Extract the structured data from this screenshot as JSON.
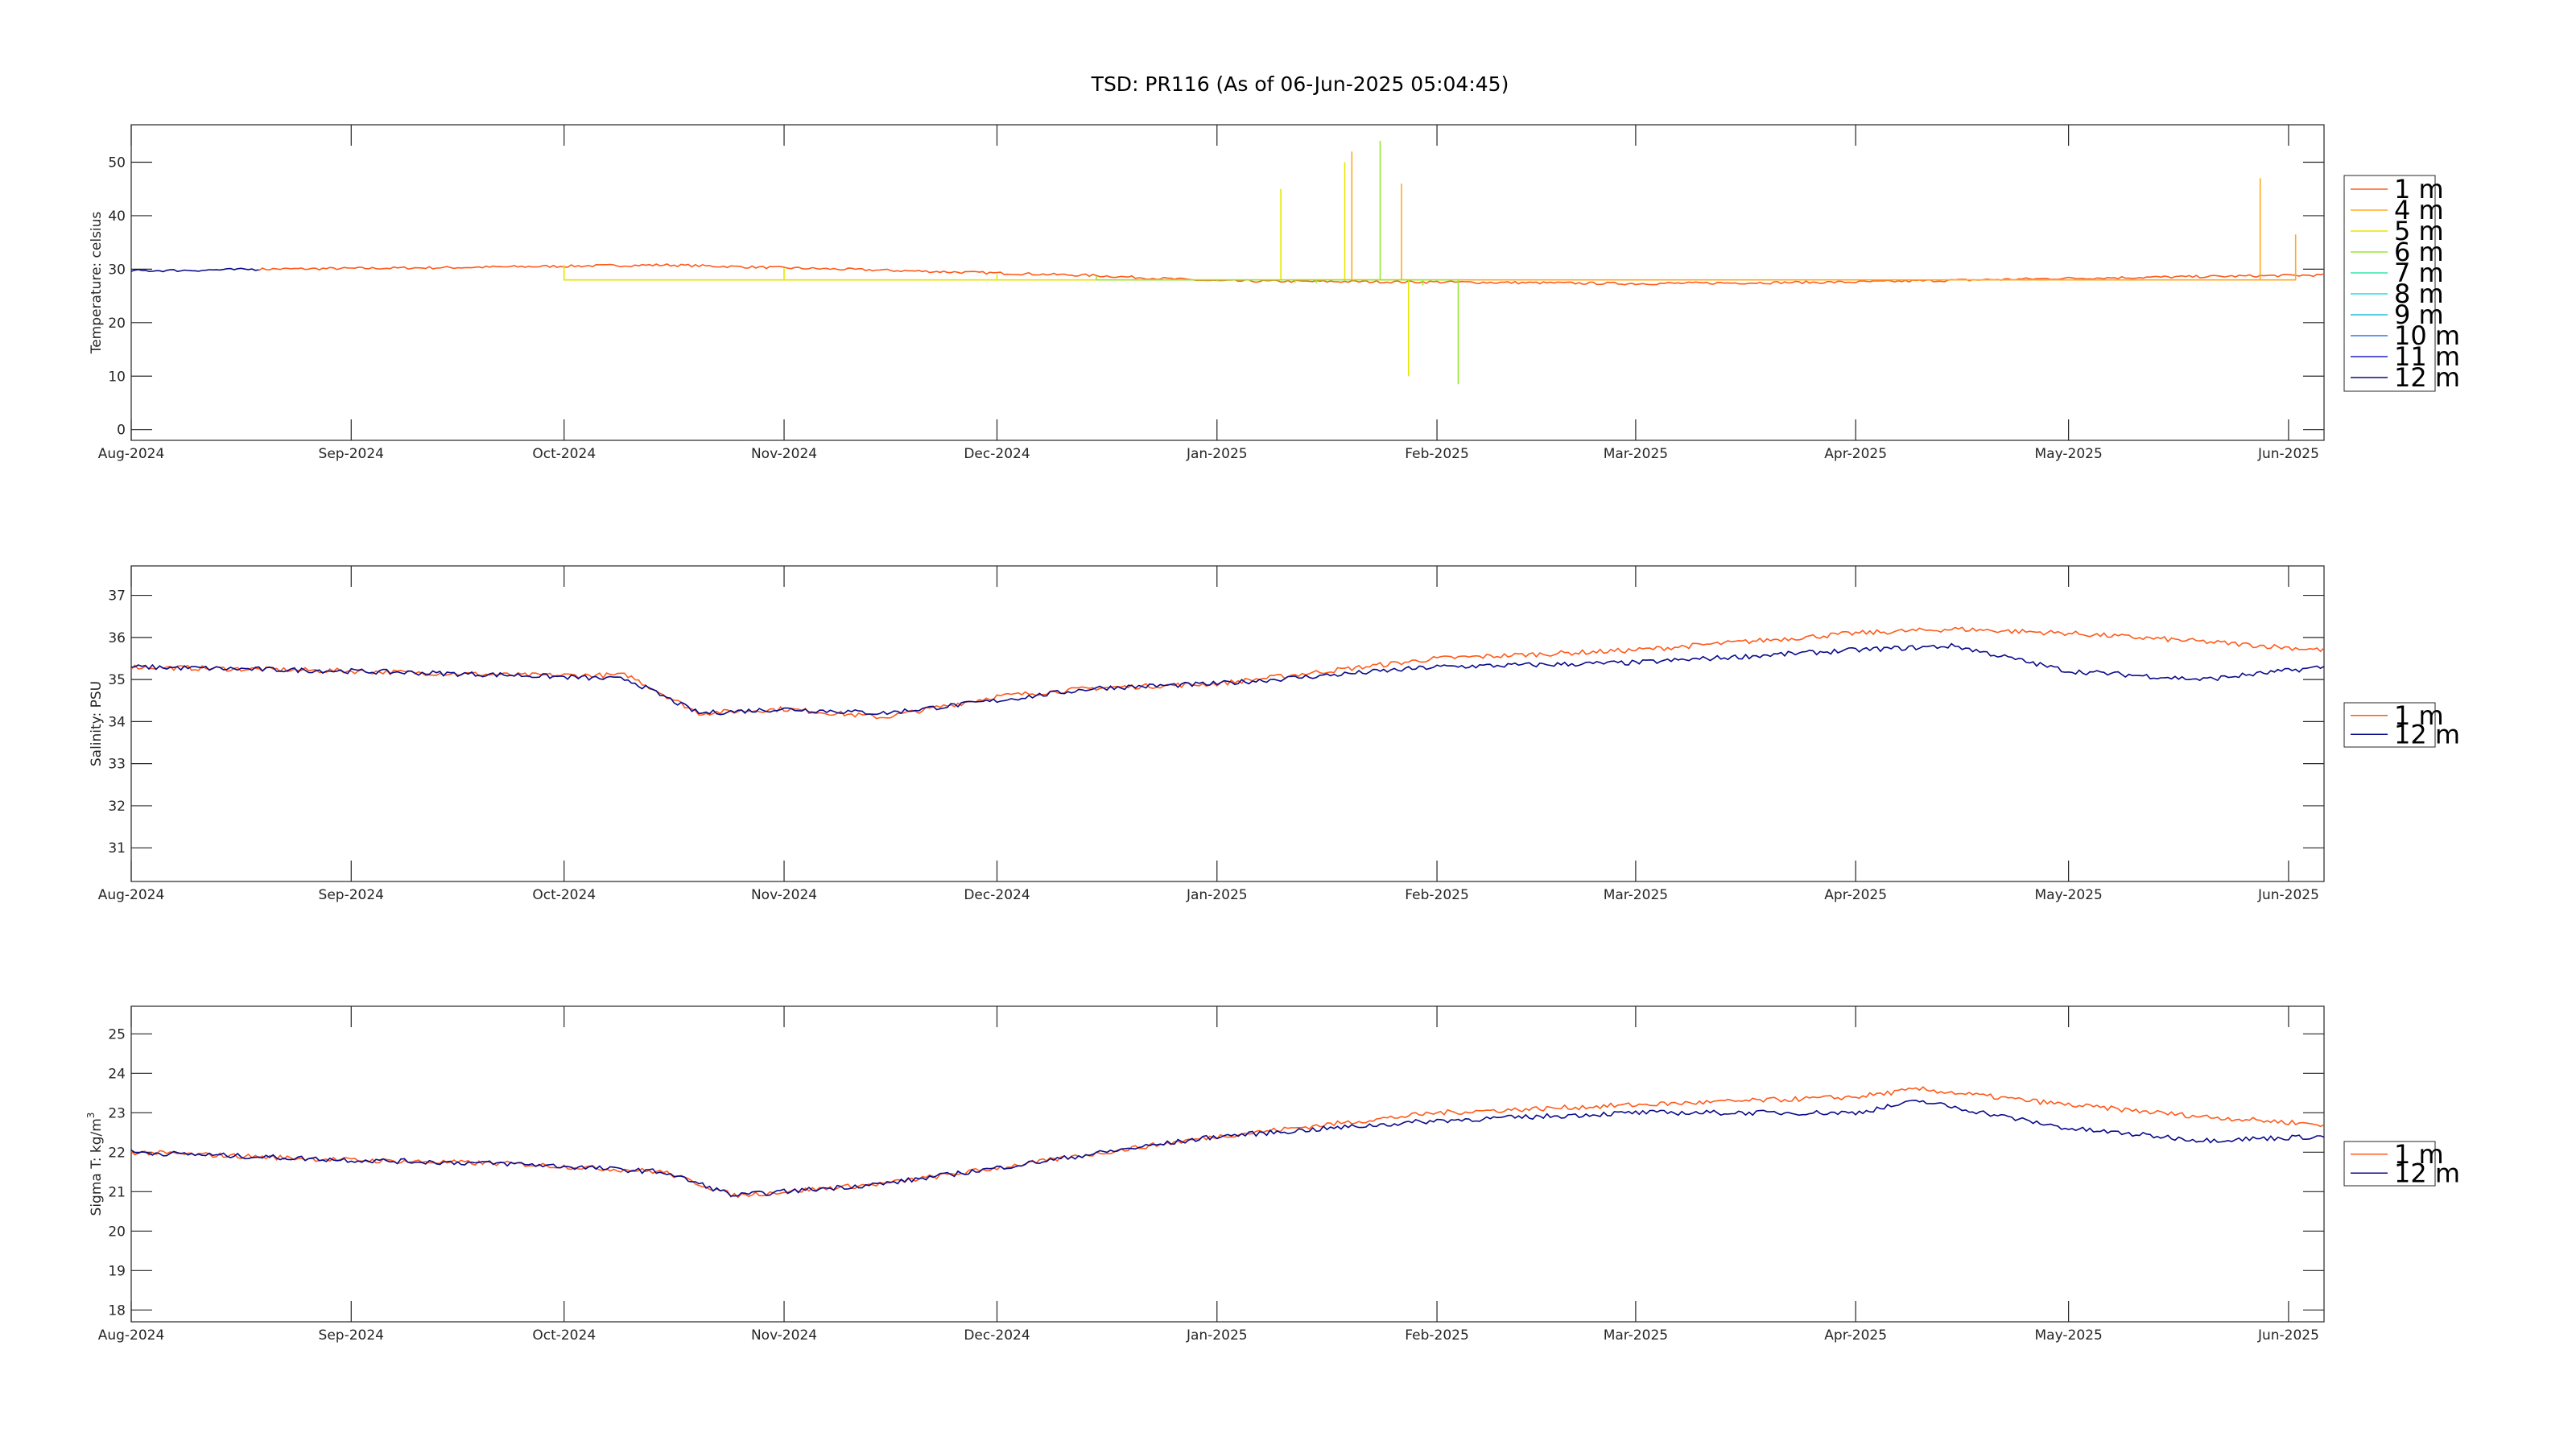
{
  "title": "TSD: PR116 (As of 06-Jun-2025 05:04:45)",
  "x_axis": {
    "start": "2024-08-01",
    "end": "2025-06-06",
    "tick_labels": [
      "Aug-2024",
      "Sep-2024",
      "Oct-2024",
      "Nov-2024",
      "Dec-2024",
      "Jan-2025",
      "Feb-2025",
      "Mar-2025",
      "Apr-2025",
      "May-2025",
      "Jun-2025"
    ]
  },
  "chart_data": [
    {
      "type": "line",
      "ylabel": "Temperature: celsius",
      "ylim": [
        -2,
        57
      ],
      "yticks": [
        0,
        10,
        20,
        30,
        40,
        50
      ],
      "legend": "right",
      "series": [
        {
          "name": "1 m",
          "color": "#ff5a1a",
          "x": [
            "2024-08-19",
            "2024-09-15",
            "2024-10-15",
            "2024-11-15",
            "2024-12-15",
            "2025-01-01",
            "2025-02-01",
            "2025-03-01",
            "2025-04-01",
            "2025-05-01",
            "2025-06-06"
          ],
          "y": [
            30.0,
            30.3,
            30.8,
            29.8,
            28.8,
            27.8,
            27.6,
            27.3,
            27.6,
            28.3,
            28.9
          ]
        },
        {
          "name": "4 m",
          "color": "#ffaa22",
          "x": [
            "2025-01-12",
            "2025-01-20",
            "2025-01-27",
            "2025-05-28",
            "2025-06-02"
          ],
          "y": [
            27.5,
            52.0,
            46.0,
            47.0,
            36.5
          ]
        },
        {
          "name": "5 m",
          "color": "#e6e600",
          "x": [
            "2024-10-01",
            "2024-11-01",
            "2024-12-01",
            "2025-01-01",
            "2025-01-10",
            "2025-01-19",
            "2025-01-28"
          ],
          "y": [
            30.8,
            30.2,
            29.0,
            28.0,
            45.0,
            50.0,
            10.0
          ]
        },
        {
          "name": "6 m",
          "color": "#99e633",
          "x": [
            "2024-12-15",
            "2025-01-01",
            "2025-01-15",
            "2025-01-24",
            "2025-01-30",
            "2025-02-04"
          ],
          "y": [
            28.7,
            27.8,
            27.4,
            54.0,
            27.0,
            8.5
          ]
        },
        {
          "name": "7 m",
          "color": "#33e6aa",
          "x": [],
          "y": []
        },
        {
          "name": "8 m",
          "color": "#22dddd",
          "x": [],
          "y": []
        },
        {
          "name": "9 m",
          "color": "#22bbdd",
          "x": [],
          "y": []
        },
        {
          "name": "10 m",
          "color": "#3377ee",
          "x": [],
          "y": []
        },
        {
          "name": "11 m",
          "color": "#2222cc",
          "x": [],
          "y": []
        },
        {
          "name": "12 m",
          "color": "#0a0a8a",
          "x": [
            "2024-08-01",
            "2024-08-10",
            "2024-08-19"
          ],
          "y": [
            29.7,
            29.8,
            30.0
          ]
        }
      ]
    },
    {
      "type": "line",
      "ylabel": "Salinity: PSU",
      "ylim": [
        30.2,
        37.7
      ],
      "yticks": [
        31,
        32,
        33,
        34,
        35,
        36,
        37
      ],
      "legend": "right",
      "series": [
        {
          "name": "1 m",
          "color": "#ff5a1a",
          "x": [
            "2024-08-01",
            "2024-09-01",
            "2024-09-25",
            "2024-10-10",
            "2024-10-20",
            "2024-11-01",
            "2024-11-15",
            "2024-12-01",
            "2024-12-15",
            "2025-01-01",
            "2025-02-01",
            "2025-03-01",
            "2025-04-01",
            "2025-04-15",
            "2025-05-01",
            "2025-05-20",
            "2025-06-06"
          ],
          "y": [
            35.3,
            35.2,
            35.1,
            35.1,
            34.2,
            34.3,
            34.1,
            34.6,
            34.8,
            34.9,
            35.5,
            35.7,
            36.1,
            36.2,
            36.1,
            35.9,
            35.7
          ]
        },
        {
          "name": "12 m",
          "color": "#0a0a8a",
          "x": [
            "2024-08-01",
            "2024-09-01",
            "2024-09-25",
            "2024-10-10",
            "2024-10-20",
            "2024-11-01",
            "2024-11-15",
            "2024-12-01",
            "2024-12-15",
            "2025-01-01",
            "2025-02-01",
            "2025-03-01",
            "2025-04-01",
            "2025-04-15",
            "2025-05-01",
            "2025-05-20",
            "2025-06-06"
          ],
          "y": [
            35.3,
            35.2,
            35.1,
            35.0,
            34.2,
            34.3,
            34.2,
            34.5,
            34.8,
            34.9,
            35.3,
            35.4,
            35.7,
            35.8,
            35.2,
            35.0,
            35.3
          ]
        }
      ]
    },
    {
      "type": "line",
      "ylabel": "Sigma T: kg/m^3",
      "ylim": [
        17.7,
        25.7
      ],
      "yticks": [
        18,
        19,
        20,
        21,
        22,
        23,
        24,
        25
      ],
      "legend": "right",
      "series": [
        {
          "name": "1 m",
          "color": "#ff5a1a",
          "x": [
            "2024-08-01",
            "2024-09-01",
            "2024-09-25",
            "2024-10-15",
            "2024-10-25",
            "2024-11-15",
            "2024-12-01",
            "2024-12-20",
            "2025-01-01",
            "2025-02-01",
            "2025-03-01",
            "2025-04-01",
            "2025-04-10",
            "2025-05-01",
            "2025-05-20",
            "2025-06-06"
          ],
          "y": [
            22.0,
            21.8,
            21.7,
            21.5,
            20.9,
            21.2,
            21.6,
            22.1,
            22.4,
            23.0,
            23.2,
            23.4,
            23.6,
            23.2,
            22.9,
            22.7
          ]
        },
        {
          "name": "12 m",
          "color": "#0a0a8a",
          "x": [
            "2024-08-01",
            "2024-09-01",
            "2024-09-25",
            "2024-10-15",
            "2024-10-25",
            "2024-11-15",
            "2024-12-01",
            "2024-12-20",
            "2025-01-01",
            "2025-02-01",
            "2025-03-01",
            "2025-04-01",
            "2025-04-10",
            "2025-05-01",
            "2025-05-20",
            "2025-06-06"
          ],
          "y": [
            22.0,
            21.8,
            21.7,
            21.5,
            20.9,
            21.2,
            21.6,
            22.1,
            22.4,
            22.8,
            23.0,
            23.0,
            23.3,
            22.6,
            22.3,
            22.4
          ]
        }
      ]
    }
  ]
}
